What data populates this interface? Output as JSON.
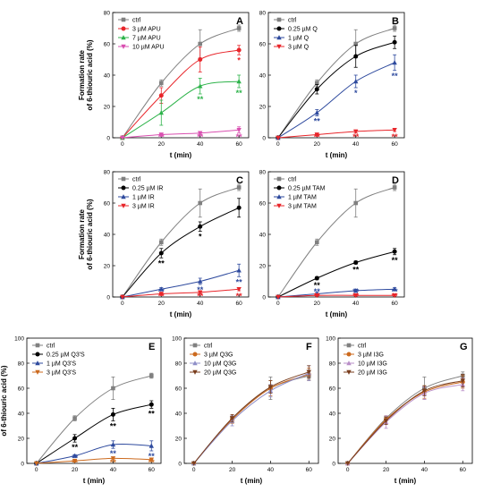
{
  "chart_data": [
    {
      "panel": "A",
      "type": "line",
      "x": [
        0,
        20,
        40,
        60
      ],
      "xlim": [
        -5,
        65
      ],
      "ylim": [
        0,
        80
      ],
      "xticks": [
        0,
        20,
        40,
        60
      ],
      "yticks": [
        0,
        20,
        40,
        60,
        80
      ],
      "xlabel": "t (min)",
      "ylabel": "Formation rate of 6-thiouric acid (%)",
      "legend": "top-left",
      "series": [
        {
          "name": "ctrl",
          "color": "#808080",
          "marker": "square",
          "values": [
            0,
            35,
            60,
            70
          ],
          "err": [
            0,
            2,
            9,
            2
          ],
          "sig": [
            "",
            "",
            "",
            ""
          ]
        },
        {
          "name": "3 µM APU",
          "color": "#e8252a",
          "marker": "circle",
          "values": [
            0,
            27,
            50,
            56
          ],
          "err": [
            0,
            5,
            8,
            3
          ],
          "sig": [
            "",
            "",
            "",
            "*"
          ]
        },
        {
          "name": "7 µM APU",
          "color": "#2db34a",
          "marker": "triangle-up",
          "values": [
            0,
            16,
            33,
            36
          ],
          "err": [
            0,
            8,
            5,
            4
          ],
          "sig": [
            "",
            "",
            "**",
            "**"
          ]
        },
        {
          "name": "10 µM APU",
          "color": "#d94fb0",
          "marker": "triangle-down",
          "values": [
            0,
            2,
            3,
            5
          ],
          "err": [
            0,
            1,
            1,
            2
          ],
          "sig": [
            "",
            "**",
            "**",
            "**"
          ]
        }
      ]
    },
    {
      "panel": "B",
      "type": "line",
      "x": [
        0,
        20,
        40,
        60
      ],
      "xlim": [
        -5,
        65
      ],
      "ylim": [
        0,
        80
      ],
      "xticks": [
        0,
        20,
        40,
        60
      ],
      "yticks": [
        0,
        20,
        40,
        60,
        80
      ],
      "xlabel": "t (min)",
      "ylabel": "",
      "legend": "top-left",
      "series": [
        {
          "name": "ctrl",
          "color": "#808080",
          "marker": "square",
          "values": [
            0,
            35,
            60,
            70
          ],
          "err": [
            0,
            2,
            9,
            2
          ],
          "sig": [
            "",
            "",
            "",
            ""
          ]
        },
        {
          "name": "0.25 µM Q",
          "color": "#000000",
          "marker": "circle",
          "values": [
            0,
            31,
            52,
            61
          ],
          "err": [
            0,
            3,
            7,
            4
          ],
          "sig": [
            "",
            "",
            "",
            ""
          ]
        },
        {
          "name": "1 µM Q",
          "color": "#2e4a9e",
          "marker": "triangle-up",
          "values": [
            0,
            16,
            36,
            48
          ],
          "err": [
            0,
            2,
            4,
            5
          ],
          "sig": [
            "",
            "**",
            "*",
            "**"
          ]
        },
        {
          "name": "3 µM Q",
          "color": "#e8252a",
          "marker": "triangle-down",
          "values": [
            0,
            2,
            4,
            5
          ],
          "err": [
            0,
            1,
            1,
            1
          ],
          "sig": [
            "",
            "**",
            "**",
            "**"
          ]
        }
      ]
    },
    {
      "panel": "C",
      "type": "line",
      "x": [
        0,
        20,
        40,
        60
      ],
      "xlim": [
        -5,
        65
      ],
      "ylim": [
        0,
        80
      ],
      "xticks": [
        0,
        20,
        40,
        60
      ],
      "yticks": [
        0,
        20,
        40,
        60,
        80
      ],
      "xlabel": "t (min)",
      "ylabel": "Formation rate of 6-thiouric acid (%)",
      "legend": "top-left",
      "series": [
        {
          "name": "ctrl",
          "color": "#808080",
          "marker": "square",
          "values": [
            0,
            35,
            60,
            70
          ],
          "err": [
            0,
            2,
            9,
            2
          ],
          "sig": [
            "",
            "",
            "",
            ""
          ]
        },
        {
          "name": "0.25 µM IR",
          "color": "#000000",
          "marker": "circle",
          "values": [
            0,
            28,
            45,
            57
          ],
          "err": [
            0,
            3,
            3,
            6
          ],
          "sig": [
            "",
            "**",
            "*",
            ""
          ]
        },
        {
          "name": "1 µM IR",
          "color": "#2e4a9e",
          "marker": "triangle-up",
          "values": [
            0,
            5,
            10,
            17
          ],
          "err": [
            0,
            1,
            2,
            4
          ],
          "sig": [
            "",
            "**",
            "**",
            "**"
          ]
        },
        {
          "name": "3 µM IR",
          "color": "#e8252a",
          "marker": "triangle-down",
          "values": [
            0,
            2,
            3,
            5
          ],
          "err": [
            0,
            1,
            1,
            1
          ],
          "sig": [
            "",
            "**",
            "**",
            "**"
          ]
        }
      ]
    },
    {
      "panel": "D",
      "type": "line",
      "x": [
        0,
        20,
        40,
        60
      ],
      "xlim": [
        -5,
        65
      ],
      "ylim": [
        0,
        80
      ],
      "xticks": [
        0,
        20,
        40,
        60
      ],
      "yticks": [
        0,
        20,
        40,
        60,
        80
      ],
      "xlabel": "t (min)",
      "ylabel": "",
      "legend": "top-left",
      "series": [
        {
          "name": "ctrl",
          "color": "#808080",
          "marker": "square",
          "values": [
            0,
            35,
            60,
            70
          ],
          "err": [
            0,
            2,
            9,
            2
          ],
          "sig": [
            "",
            "",
            "",
            ""
          ]
        },
        {
          "name": "0.25 µM TAM",
          "color": "#000000",
          "marker": "circle",
          "values": [
            0,
            12,
            22,
            29
          ],
          "err": [
            0,
            1,
            1,
            2
          ],
          "sig": [
            "",
            "**",
            "**",
            "**"
          ]
        },
        {
          "name": "1 µM TAM",
          "color": "#2e4a9e",
          "marker": "triangle-up",
          "values": [
            0,
            2,
            4,
            5
          ],
          "err": [
            0,
            1,
            1,
            1
          ],
          "sig": [
            "",
            "**",
            "**",
            "**"
          ]
        },
        {
          "name": "3 µM TAM",
          "color": "#e8252a",
          "marker": "triangle-down",
          "values": [
            0,
            1,
            1,
            1
          ],
          "err": [
            0,
            0.5,
            0.5,
            0.5
          ],
          "sig": [
            "",
            "**",
            "**",
            "**"
          ]
        }
      ]
    },
    {
      "panel": "E",
      "type": "line",
      "x": [
        0,
        20,
        40,
        60
      ],
      "xlim": [
        -5,
        65
      ],
      "ylim": [
        0,
        100
      ],
      "xticks": [
        0,
        20,
        40,
        60
      ],
      "yticks": [
        0,
        20,
        40,
        60,
        80,
        100
      ],
      "xlabel": "t (min)",
      "ylabel": "Formation rate of 6-thiouric acid (%)",
      "legend": "top-left",
      "series": [
        {
          "name": "ctrl",
          "color": "#808080",
          "marker": "square",
          "values": [
            0,
            36,
            60,
            70
          ],
          "err": [
            0,
            2,
            9,
            2
          ],
          "sig": [
            "",
            "",
            "",
            ""
          ]
        },
        {
          "name": "0.25 µM Q3'S",
          "color": "#000000",
          "marker": "circle",
          "values": [
            0,
            20,
            39,
            47
          ],
          "err": [
            0,
            3,
            5,
            3
          ],
          "sig": [
            "",
            "**",
            "**",
            "**"
          ]
        },
        {
          "name": "1 µM Q3'S",
          "color": "#2e4a9e",
          "marker": "triangle-up",
          "values": [
            0,
            6,
            15,
            14
          ],
          "err": [
            0,
            1,
            3,
            4
          ],
          "sig": [
            "",
            "**",
            "**",
            "**"
          ]
        },
        {
          "name": "3 µM Q3'S",
          "color": "#cc6a1e",
          "marker": "triangle-down",
          "values": [
            0,
            2,
            4,
            3
          ],
          "err": [
            0,
            1,
            1,
            1
          ],
          "sig": [
            "",
            "**",
            "**",
            "**"
          ]
        }
      ]
    },
    {
      "panel": "F",
      "type": "line",
      "x": [
        0,
        20,
        40,
        60
      ],
      "xlim": [
        -5,
        65
      ],
      "ylim": [
        0,
        100
      ],
      "xticks": [
        0,
        20,
        40,
        60
      ],
      "yticks": [
        0,
        20,
        40,
        60,
        80,
        100
      ],
      "xlabel": "t (min)",
      "ylabel": "",
      "legend": "top-left",
      "series": [
        {
          "name": "ctrl",
          "color": "#808080",
          "marker": "square",
          "values": [
            0,
            36,
            60,
            70
          ],
          "err": [
            0,
            2,
            9,
            3
          ],
          "sig": [
            "",
            "",
            "",
            ""
          ]
        },
        {
          "name": "3 µM Q3G",
          "color": "#cc6a1e",
          "marker": "circle",
          "values": [
            0,
            35,
            60,
            71
          ],
          "err": [
            0,
            3,
            6,
            5
          ],
          "sig": [
            "",
            "",
            "",
            ""
          ]
        },
        {
          "name": "10 µM Q3G",
          "color": "#8f8fc8",
          "marker": "triangle-up",
          "values": [
            0,
            34,
            58,
            72
          ],
          "err": [
            0,
            4,
            5,
            6
          ],
          "sig": [
            "",
            "",
            "",
            ""
          ]
        },
        {
          "name": "20 µM Q3G",
          "color": "#7a3e1e",
          "marker": "triangle-down",
          "values": [
            0,
            36,
            61,
            73
          ],
          "err": [
            0,
            3,
            5,
            5
          ],
          "sig": [
            "",
            "",
            "",
            ""
          ]
        }
      ]
    },
    {
      "panel": "G",
      "type": "line",
      "x": [
        0,
        20,
        40,
        60
      ],
      "xlim": [
        -5,
        65
      ],
      "ylim": [
        0,
        100
      ],
      "xticks": [
        0,
        20,
        40,
        60
      ],
      "yticks": [
        0,
        20,
        40,
        60,
        80,
        100
      ],
      "xlabel": "t (min)",
      "ylabel": "",
      "legend": "top-left",
      "series": [
        {
          "name": "ctrl",
          "color": "#808080",
          "marker": "square",
          "values": [
            0,
            36,
            60,
            70
          ],
          "err": [
            0,
            2,
            9,
            3
          ],
          "sig": [
            "",
            "",
            "",
            ""
          ]
        },
        {
          "name": "3 µM I3G",
          "color": "#cc6a1e",
          "marker": "circle",
          "values": [
            0,
            35,
            57,
            65
          ],
          "err": [
            0,
            3,
            5,
            5
          ],
          "sig": [
            "",
            "",
            "",
            ""
          ]
        },
        {
          "name": "10 µM I3G",
          "color": "#b98fc8",
          "marker": "triangle-up",
          "values": [
            0,
            33,
            56,
            63
          ],
          "err": [
            0,
            5,
            5,
            5
          ],
          "sig": [
            "",
            "",
            "",
            ""
          ]
        },
        {
          "name": "20 µM I3G",
          "color": "#7a3e1e",
          "marker": "triangle-down",
          "values": [
            0,
            34,
            58,
            66
          ],
          "err": [
            0,
            3,
            4,
            5
          ],
          "sig": [
            "",
            "",
            "",
            ""
          ]
        }
      ]
    }
  ]
}
